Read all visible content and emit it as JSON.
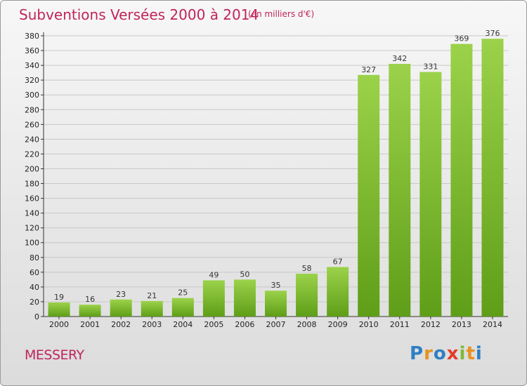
{
  "title": "Subventions Versées 2000 à 2014",
  "unit_note": "(en milliers d'€)",
  "commune": "MESSERY",
  "logo": {
    "text": "Proxiti",
    "letter_colors": [
      "#2e7fc4",
      "#e8921f",
      "#2e7fc4",
      "#e23b2b",
      "#7fb93a",
      "#e8921f",
      "#2e7fc4"
    ]
  },
  "colors": {
    "title": "#c0245c",
    "bar_top": "#9bd24a",
    "bar_bottom": "#5f9e18",
    "grid": "#c8c8c8"
  },
  "chart_data": {
    "type": "bar",
    "categories": [
      "2000",
      "2001",
      "2002",
      "2003",
      "2004",
      "2005",
      "2006",
      "2007",
      "2008",
      "2009",
      "2010",
      "2011",
      "2012",
      "2013",
      "2014"
    ],
    "values": [
      19,
      16,
      23,
      21,
      25,
      49,
      50,
      35,
      58,
      67,
      327,
      342,
      331,
      369,
      376
    ],
    "ylim": [
      0,
      380
    ],
    "yticks": [
      0,
      20,
      40,
      60,
      80,
      100,
      120,
      140,
      160,
      180,
      200,
      220,
      240,
      260,
      280,
      300,
      320,
      340,
      360,
      380
    ],
    "grid": "horizontal",
    "title": "Subventions Versées 2000 à 2014",
    "xlabel": "",
    "ylabel": ""
  }
}
